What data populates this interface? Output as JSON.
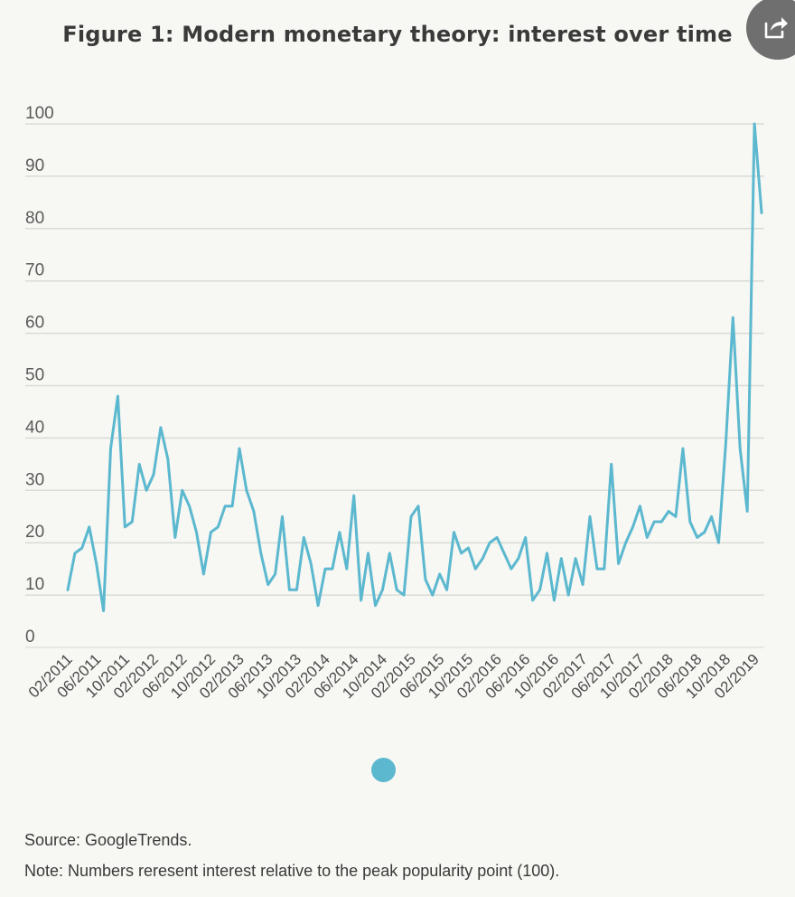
{
  "header": {
    "title": "Figure 1: Modern monetary theory: interest over time"
  },
  "share": {
    "icon": "share-icon"
  },
  "footer": {
    "source": "Source: GoogleTrends.",
    "note": "Note: Numbers reresent interest relative to the peak popularity point (100)."
  },
  "colors": {
    "line": "#5bb8cf",
    "background": "#f7f7f3",
    "grid": "#d8dcd6"
  },
  "chart_data": {
    "type": "line",
    "title": "Figure 1: Modern monetary theory: interest over time",
    "xlabel": "",
    "ylabel": "",
    "ylim": [
      0,
      100
    ],
    "yticks": [
      0,
      10,
      20,
      30,
      40,
      50,
      60,
      70,
      80,
      90,
      100
    ],
    "grid": true,
    "legend": "none",
    "x_tick_labels": [
      "02/2011",
      "06/2011",
      "10/2011",
      "02/2012",
      "06/2012",
      "10/2012",
      "02/2013",
      "06/2013",
      "10/2013",
      "02/2014",
      "06/2014",
      "10/2014",
      "02/2015",
      "06/2015",
      "10/2015",
      "02/2016",
      "06/2016",
      "10/2016",
      "02/2017",
      "06/2017",
      "10/2017",
      "02/2018",
      "06/2018",
      "10/2018",
      "02/2019"
    ],
    "series": [
      {
        "values": [
          11,
          18,
          19,
          23,
          16,
          7,
          38,
          48,
          23,
          24,
          35,
          30,
          33,
          42,
          36,
          21,
          30,
          27,
          22,
          14,
          22,
          23,
          27,
          27,
          38,
          30,
          26,
          18,
          12,
          14,
          25,
          11,
          11,
          21,
          16,
          8,
          15,
          15,
          22,
          15,
          29,
          9,
          18,
          8,
          11,
          18,
          11,
          10,
          25,
          27,
          13,
          10,
          14,
          11,
          22,
          18,
          19,
          15,
          17,
          20,
          21,
          18,
          15,
          17,
          21,
          9,
          11,
          18,
          9,
          17,
          10,
          17,
          12,
          25,
          15,
          15,
          35,
          16,
          20,
          23,
          27,
          21,
          24,
          24,
          26,
          25,
          38,
          24,
          21,
          22,
          25,
          20,
          39,
          63,
          38,
          26,
          100,
          83
        ]
      }
    ]
  }
}
